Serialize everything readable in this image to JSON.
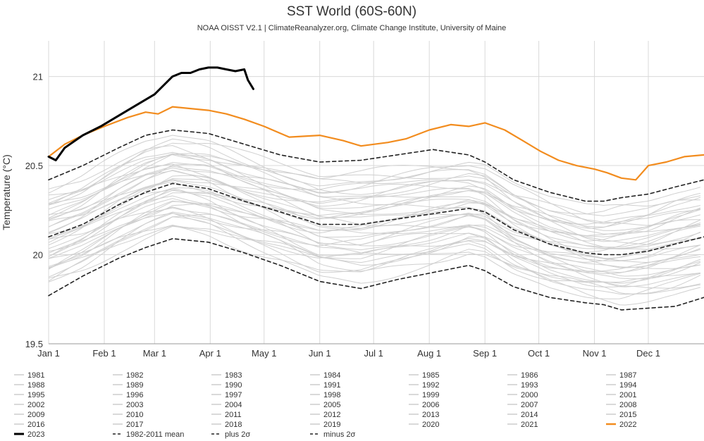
{
  "chart_data": {
    "type": "line",
    "title": "SST World (60S-60N)",
    "subtitle": "NOAA OISST V2.1 | ClimateReanalyzer.org, Climate Change Institute, University of Maine",
    "ylabel": "Temperature (°C)",
    "xlabel": "",
    "ylim": [
      19.5,
      21.2
    ],
    "yticks": [
      19.5,
      20,
      20.5,
      21
    ],
    "ytick_labels": [
      "19.5",
      "20",
      "20.5",
      "21"
    ],
    "xlim": [
      1,
      366
    ],
    "xticks": [
      1,
      32,
      60,
      91,
      121,
      152,
      182,
      213,
      244,
      274,
      305,
      335
    ],
    "xtick_labels": [
      "Jan 1",
      "Feb 1",
      "Mar 1",
      "Apr 1",
      "May 1",
      "Jun 1",
      "Jul 1",
      "Aug 1",
      "Sep 1",
      "Oct 1",
      "Nov 1",
      "Dec 1"
    ],
    "grid": true,
    "legend_position": "bottom",
    "colors": {
      "background_years": "#cfcfcf",
      "year_2023": "#000000",
      "year_2022": "#f28c1e",
      "sigma_lines": "#222222",
      "grid": "#d9d9d9"
    },
    "legend": [
      "1981",
      "1982",
      "1983",
      "1984",
      "1985",
      "1986",
      "1987",
      "1988",
      "1989",
      "1990",
      "1991",
      "1992",
      "1993",
      "1994",
      "1995",
      "1996",
      "1997",
      "1998",
      "1999",
      "2000",
      "2001",
      "2002",
      "2003",
      "2004",
      "2005",
      "2006",
      "2007",
      "2008",
      "2009",
      "2010",
      "2011",
      "2012",
      "2013",
      "2014",
      "2015",
      "2016",
      "2017",
      "2018",
      "2019",
      "2020",
      "2021",
      "2022",
      "2023",
      "1982-2011 mean",
      "plus 2σ",
      "minus 2σ"
    ],
    "series": [
      {
        "name": "1982-2011 mean",
        "style": "dashed",
        "x": [
          1,
          20,
          40,
          55,
          70,
          90,
          110,
          130,
          152,
          175,
          195,
          215,
          235,
          244,
          260,
          280,
          300,
          310,
          320,
          335,
          350,
          366
        ],
        "y": [
          20.1,
          20.17,
          20.28,
          20.35,
          20.4,
          20.37,
          20.3,
          20.24,
          20.17,
          20.17,
          20.2,
          20.23,
          20.26,
          20.24,
          20.14,
          20.06,
          20.01,
          20.0,
          20.0,
          20.02,
          20.06,
          20.1
        ]
      },
      {
        "name": "plus 2σ",
        "style": "dashed",
        "x": [
          1,
          20,
          40,
          55,
          70,
          90,
          110,
          130,
          152,
          175,
          195,
          215,
          235,
          244,
          260,
          280,
          300,
          310,
          320,
          335,
          350,
          366
        ],
        "y": [
          20.42,
          20.5,
          20.6,
          20.67,
          20.7,
          20.68,
          20.62,
          20.56,
          20.52,
          20.53,
          20.56,
          20.59,
          20.56,
          20.52,
          20.42,
          20.35,
          20.3,
          20.3,
          20.32,
          20.34,
          20.38,
          20.42
        ]
      },
      {
        "name": "minus 2σ",
        "style": "dashed",
        "x": [
          1,
          20,
          40,
          55,
          70,
          90,
          110,
          130,
          152,
          175,
          195,
          215,
          235,
          244,
          260,
          280,
          300,
          310,
          320,
          335,
          350,
          366
        ],
        "y": [
          19.77,
          19.88,
          19.98,
          20.04,
          20.09,
          20.07,
          20.01,
          19.94,
          19.85,
          19.81,
          19.86,
          19.9,
          19.94,
          19.91,
          19.82,
          19.76,
          19.73,
          19.72,
          19.69,
          19.7,
          19.71,
          19.76
        ]
      },
      {
        "name": "2022",
        "style": "solid",
        "x": [
          1,
          10,
          20,
          32,
          45,
          55,
          62,
          70,
          80,
          90,
          100,
          110,
          121,
          135,
          152,
          165,
          175,
          190,
          200,
          213,
          225,
          235,
          244,
          255,
          265,
          275,
          285,
          295,
          305,
          312,
          320,
          328,
          335,
          345,
          355,
          366
        ],
        "y": [
          20.55,
          20.62,
          20.67,
          20.72,
          20.77,
          20.8,
          20.79,
          20.83,
          20.82,
          20.81,
          20.79,
          20.76,
          20.72,
          20.66,
          20.67,
          20.64,
          20.61,
          20.63,
          20.65,
          20.7,
          20.73,
          20.72,
          20.74,
          20.7,
          20.64,
          20.58,
          20.53,
          20.5,
          20.48,
          20.46,
          20.43,
          20.42,
          20.5,
          20.52,
          20.55,
          20.56
        ]
      },
      {
        "name": "2023",
        "style": "bold",
        "x": [
          1,
          5,
          10,
          20,
          30,
          40,
          50,
          60,
          65,
          70,
          75,
          80,
          85,
          90,
          95,
          100,
          105,
          110,
          112,
          115
        ],
        "y": [
          20.55,
          20.53,
          20.6,
          20.67,
          20.72,
          20.78,
          20.84,
          20.9,
          20.95,
          21.0,
          21.02,
          21.02,
          21.04,
          21.05,
          21.05,
          21.04,
          21.03,
          21.04,
          20.98,
          20.93
        ]
      }
    ]
  }
}
